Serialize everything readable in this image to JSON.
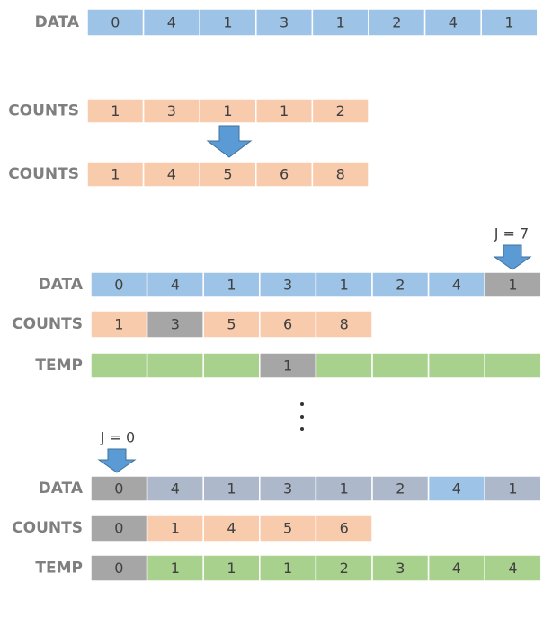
{
  "rows": [
    {
      "label": "DATA",
      "cells": [
        0,
        4,
        1,
        3,
        1,
        2,
        4,
        1
      ]
    },
    {
      "label": "COUNTS",
      "cells": [
        1,
        3,
        1,
        1,
        2
      ]
    },
    {
      "label": "COUNTS",
      "cells": [
        1,
        4,
        5,
        6,
        8
      ]
    },
    {
      "label": "DATA",
      "cells": [
        0,
        4,
        1,
        3,
        1,
        2,
        4,
        1
      ]
    },
    {
      "label": "COUNTS",
      "cells": [
        1,
        3,
        5,
        6,
        8
      ]
    },
    {
      "label": "TEMP",
      "cells": [
        null,
        null,
        null,
        1,
        null,
        null,
        null,
        null
      ]
    },
    {
      "label": "DATA",
      "cells": [
        0,
        4,
        1,
        3,
        1,
        2,
        4,
        1
      ]
    },
    {
      "label": "COUNTS",
      "cells": [
        0,
        1,
        4,
        5,
        6
      ]
    },
    {
      "label": "TEMP",
      "cells": [
        0,
        1,
        1,
        1,
        2,
        3,
        4,
        4
      ]
    }
  ],
  "pointers": [
    "J = 7",
    "J = 0"
  ]
}
